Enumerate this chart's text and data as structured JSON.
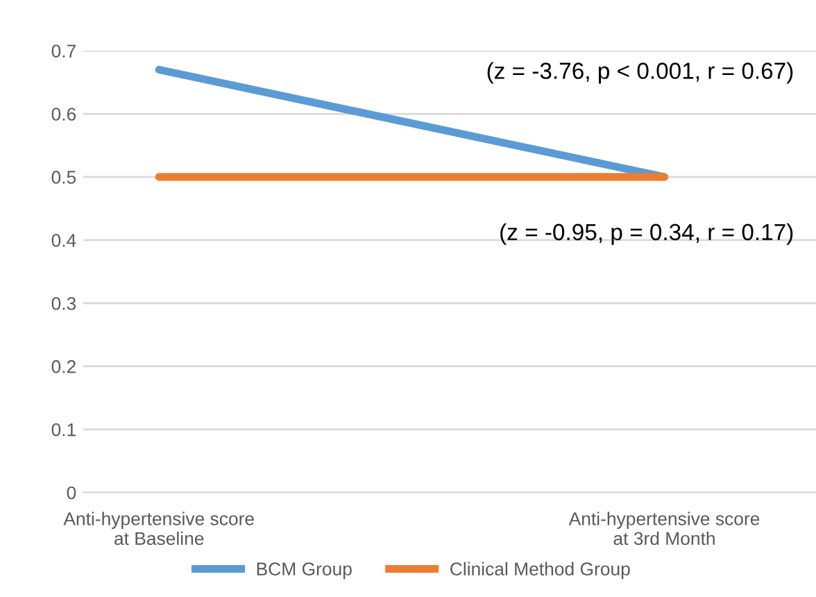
{
  "chart_data": {
    "type": "line",
    "categories": [
      "Anti-hypertensive score\nat Baseline",
      "Anti-hypertensive score\nat 3rd Month"
    ],
    "series": [
      {
        "name": "BCM Group",
        "color": "#5b9bd5",
        "values": [
          0.67,
          0.5
        ]
      },
      {
        "name": "Clinical Method Group",
        "color": "#ed7d31",
        "values": [
          0.5,
          0.5
        ]
      }
    ],
    "ylim": [
      0,
      0.7
    ],
    "yticks": [
      0,
      0.1,
      0.2,
      0.3,
      0.4,
      0.5,
      0.6,
      0.7
    ],
    "grid": "y",
    "legend": "bottom",
    "marker": "none",
    "line_style": "solid",
    "annotations": [
      "(z = -3.76, p < 0.001, r = 0.67)",
      "(z = -0.95, p = 0.34, r = 0.17)"
    ]
  }
}
